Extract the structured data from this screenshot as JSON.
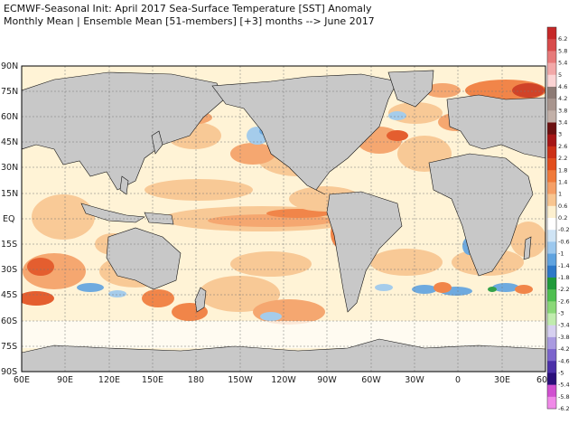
{
  "title_line1": "ECMWF-Seasonal Init: April 2017 Sea-Surface Temperature [SST] Anomaly",
  "title_line2": "Monthly Mean | Ensemble Mean [51-members] [+3] months --> June 2017",
  "lat_labels": [
    "90N",
    "75N",
    "60N",
    "45N",
    "30N",
    "15N",
    "EQ",
    "15S",
    "30S",
    "45S",
    "60S",
    "75S",
    "90S"
  ],
  "lon_labels": [
    "60E",
    "90E",
    "120E",
    "150E",
    "180",
    "150W",
    "120W",
    "90W",
    "60W",
    "30W",
    "0",
    "30E",
    "60E"
  ],
  "colorbar": {
    "labels": [
      "6.2",
      "5.8",
      "5.4",
      "5",
      "4.6",
      "4.2",
      "3.8",
      "3.4",
      "3",
      "2.6",
      "2.2",
      "1.8",
      "1.4",
      "1",
      "0.6",
      "0.2",
      "-0.2",
      "-0.6",
      "-1",
      "-1.4",
      "-1.8",
      "-2.2",
      "-2.6",
      "-3",
      "-3.4",
      "-3.8",
      "-4.2",
      "-4.6",
      "-5",
      "-5.4",
      "-5.8",
      "-6.2"
    ],
    "colors": [
      "#c62828",
      "#d84b4b",
      "#e77a7a",
      "#f2a8a8",
      "#fbd4d4",
      "#8c7a74",
      "#a8958e",
      "#c2b0a8",
      "#6b1010",
      "#a51515",
      "#cc3016",
      "#e24e1d",
      "#f07a3a",
      "#f59f66",
      "#f8c590",
      "#fdf0cf",
      "#ffffff",
      "#cfe4f5",
      "#9cc8ee",
      "#5fa3e0",
      "#2d78c8",
      "#1f9a3a",
      "#4fbf50",
      "#8ad878",
      "#c0ecae",
      "#d6d0f0",
      "#a99ae0",
      "#7b64cc",
      "#4b2fa8",
      "#2a0f7a",
      "#d050d0",
      "#f08ae8"
    ]
  },
  "colors": {
    "land": "#c8c8c8",
    "ocean_base": "#fff5dc",
    "border": "#000000"
  }
}
